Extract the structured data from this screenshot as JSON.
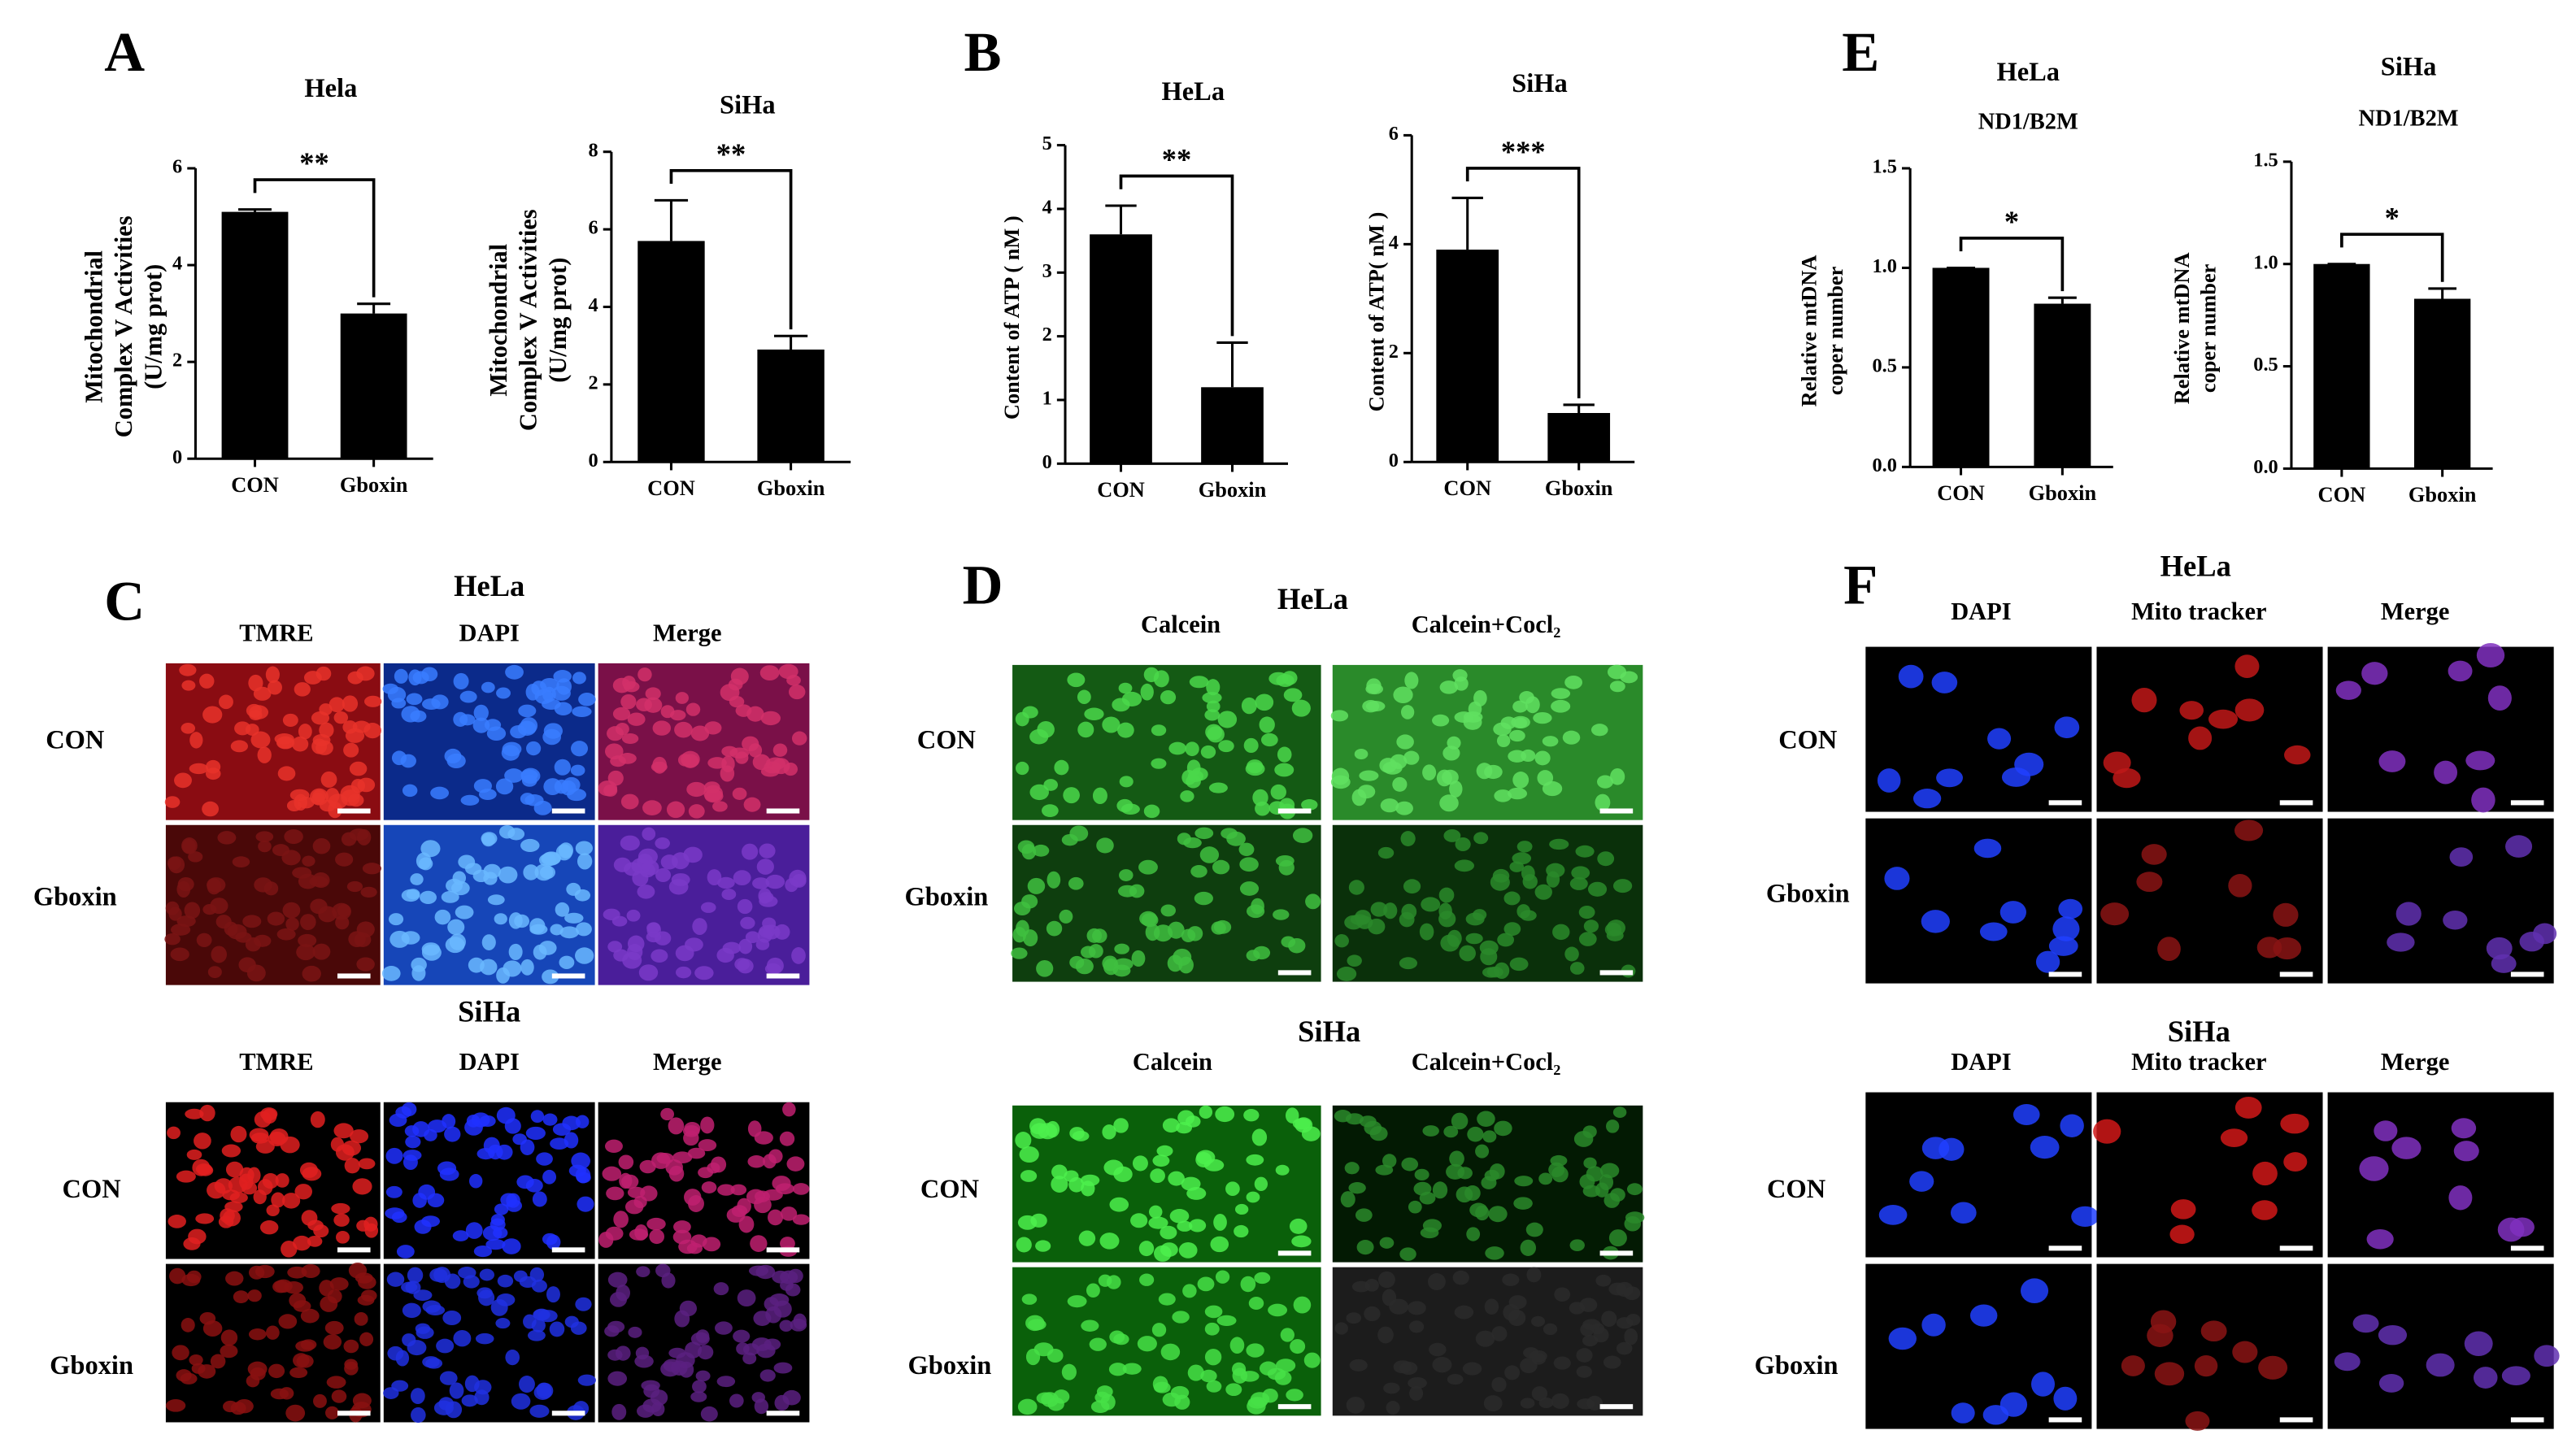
{
  "chart_data": [
    {
      "type": "bar",
      "panel": "A",
      "title": "Hela",
      "ylabel": [
        "Mitochondrial",
        "Complex V Activities",
        "(U/mg prot)"
      ],
      "categories": [
        "CON",
        "Gboxin"
      ],
      "values": [
        5.1,
        3.0
      ],
      "errors": [
        0.05,
        0.2
      ],
      "color": "#000000",
      "ylim": [
        0,
        6
      ],
      "yticks": [
        0,
        2,
        4,
        6
      ],
      "significance": "**"
    },
    {
      "type": "bar",
      "title": "SiHa",
      "ylabel": [
        "Mitochondrial",
        "Complex V Activities",
        "(U/mg prot)"
      ],
      "categories": [
        "CON",
        "Gboxin"
      ],
      "values": [
        5.7,
        2.9
      ],
      "errors": [
        1.05,
        0.35
      ],
      "color": "#000000",
      "ylim": [
        0,
        8
      ],
      "yticks": [
        0,
        2,
        4,
        6,
        8
      ],
      "significance": "**"
    },
    {
      "type": "bar",
      "panel": "B",
      "title": "HeLa",
      "ylabel": [
        "Content of ATP ( nM )"
      ],
      "categories": [
        "CON",
        "Gboxin"
      ],
      "values": [
        3.6,
        1.2
      ],
      "errors": [
        0.45,
        0.7
      ],
      "color": "#000000",
      "ylim": [
        0,
        5
      ],
      "yticks": [
        0,
        1,
        2,
        3,
        4,
        5
      ],
      "significance": "**"
    },
    {
      "type": "bar",
      "title": "SiHa",
      "ylabel": [
        "Content of ATP( nM )"
      ],
      "categories": [
        "CON",
        "Gboxin"
      ],
      "values": [
        3.9,
        0.9
      ],
      "errors": [
        0.95,
        0.15
      ],
      "color": "#000000",
      "ylim": [
        0,
        6
      ],
      "yticks": [
        0,
        2,
        4,
        6
      ],
      "significance": "***"
    },
    {
      "type": "bar",
      "panel": "E",
      "title": "HeLa",
      "subtitle": "ND1/B2M",
      "ylabel": [
        "Relative mtDNA",
        "coper number"
      ],
      "categories": [
        "CON",
        "Gboxin"
      ],
      "values": [
        1.0,
        0.82
      ],
      "errors": [
        0.0,
        0.03
      ],
      "color": "#000000",
      "ylim": [
        0,
        1.5
      ],
      "yticks": [
        {
          "value": 0,
          "label": "0.0"
        },
        {
          "value": 0.5,
          "label": "0.5"
        },
        {
          "value": 1,
          "label": "1.0"
        },
        {
          "value": 1.5,
          "label": "1.5"
        }
      ],
      "significance": "*"
    },
    {
      "type": "bar",
      "title": "SiHa",
      "subtitle": "ND1/B2M",
      "ylabel": [
        "Relative mtDNA",
        "coper number"
      ],
      "categories": [
        "CON",
        "Gboxin"
      ],
      "values": [
        1.0,
        0.83
      ],
      "errors": [
        0.0,
        0.05
      ],
      "color": "#000000",
      "ylim": [
        0,
        1.5
      ],
      "yticks": [
        {
          "value": 0,
          "label": "0.0"
        },
        {
          "value": 0.5,
          "label": "0.5"
        },
        {
          "value": 1,
          "label": "1.0"
        },
        {
          "value": 1.5,
          "label": "1.5"
        }
      ],
      "significance": "*"
    }
  ],
  "image_panels": [
    {
      "letter": "C",
      "groups": [
        {
          "title": "HeLa",
          "columns": [
            "TMRE",
            "DAPI",
            "Merge"
          ],
          "rows": [
            "CON",
            "Gboxin"
          ]
        },
        {
          "title": "SiHa",
          "columns": [
            "TMRE",
            "DAPI",
            "Merge"
          ],
          "rows": [
            "CON",
            "Gboxin"
          ]
        }
      ]
    },
    {
      "letter": "D",
      "groups": [
        {
          "title": "HeLa",
          "columns": [
            "Calcein",
            "Calcein+Cocl₂"
          ],
          "rows": [
            "CON",
            "Gboxin"
          ]
        },
        {
          "title": "SiHa",
          "columns": [
            "Calcein",
            "Calcein+Cocl₂"
          ],
          "rows": [
            "CON",
            "Gboxin"
          ]
        }
      ]
    },
    {
      "letter": "F",
      "groups": [
        {
          "title": "HeLa",
          "columns": [
            "DAPI",
            "Mito tracker",
            "Merge"
          ],
          "rows": [
            "CON",
            "Gboxin"
          ]
        },
        {
          "title": "SiHa",
          "columns": [
            "DAPI",
            "Mito tracker",
            "Merge"
          ],
          "rows": [
            "CON",
            "Gboxin"
          ]
        }
      ]
    }
  ]
}
